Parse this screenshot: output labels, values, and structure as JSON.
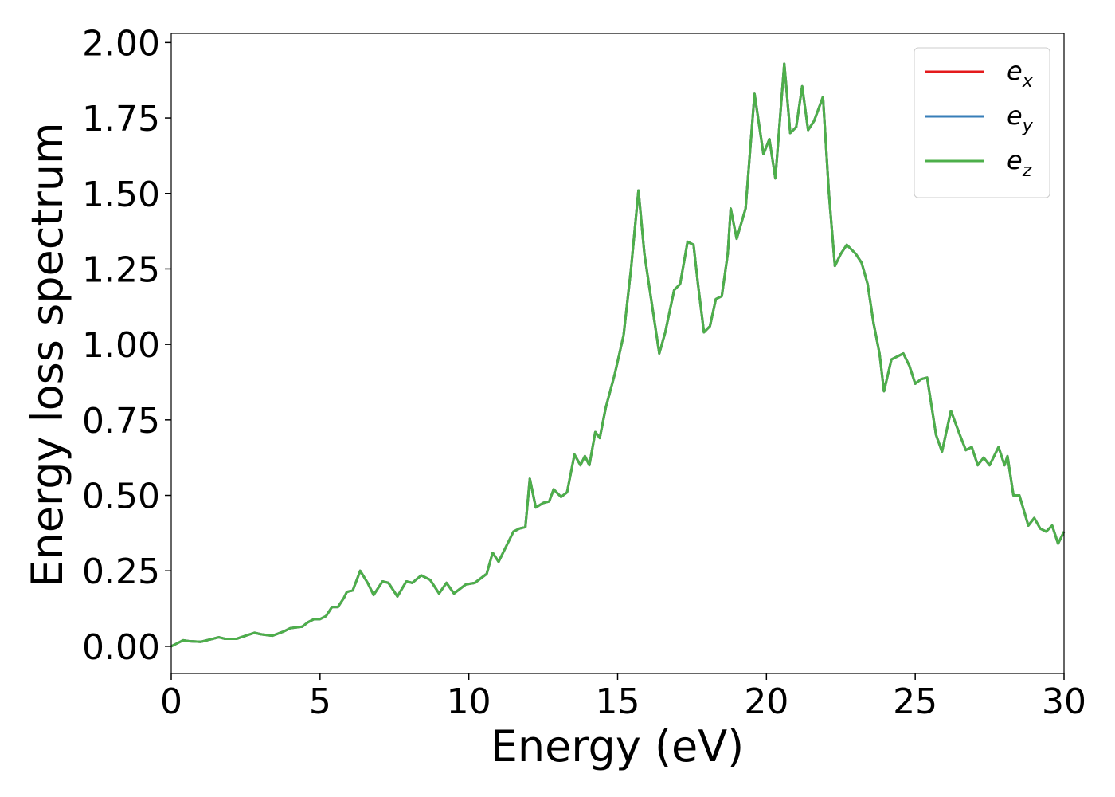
{
  "chart_data": {
    "type": "line",
    "xlabel": "Energy (eV)",
    "ylabel": "Energy loss spectrum",
    "x": [
      0,
      0.4,
      0.6,
      1.0,
      1.4,
      1.6,
      1.8,
      2.2,
      2.8,
      3.0,
      3.4,
      3.8,
      4.0,
      4.4,
      4.6,
      4.8,
      5.0,
      5.2,
      5.4,
      5.6,
      5.8,
      5.9,
      6.1,
      6.35,
      6.6,
      6.8,
      7.1,
      7.3,
      7.6,
      7.9,
      8.1,
      8.4,
      8.7,
      9.0,
      9.25,
      9.5,
      9.9,
      10.2,
      10.6,
      10.8,
      11.0,
      11.3,
      11.5,
      11.7,
      11.9,
      12.05,
      12.25,
      12.5,
      12.7,
      12.85,
      13.1,
      13.3,
      13.55,
      13.75,
      13.9,
      14.05,
      14.25,
      14.4,
      14.6,
      14.9,
      15.2,
      15.45,
      15.7,
      15.9,
      16.05,
      16.4,
      16.6,
      16.9,
      17.1,
      17.35,
      17.55,
      17.7,
      17.9,
      18.1,
      18.3,
      18.5,
      18.7,
      18.8,
      19.0,
      19.3,
      19.6,
      19.9,
      20.1,
      20.3,
      20.6,
      20.8,
      21.0,
      21.2,
      21.4,
      21.6,
      21.9,
      22.1,
      22.3,
      22.5,
      22.7,
      23.0,
      23.2,
      23.4,
      23.6,
      23.8,
      23.95,
      24.2,
      24.6,
      24.8,
      25.0,
      25.2,
      25.4,
      25.7,
      25.9,
      26.2,
      26.5,
      26.7,
      26.9,
      27.1,
      27.3,
      27.5,
      27.8,
      28.0,
      28.1,
      28.3,
      28.5,
      28.8,
      29.0,
      29.2,
      29.4,
      29.6,
      29.8,
      30.0
    ],
    "series": [
      {
        "name": "e_x",
        "color": "#e41a1c",
        "values": [
          0,
          0.02,
          0.017,
          0.015,
          0.025,
          0.03,
          0.025,
          0.025,
          0.045,
          0.04,
          0.035,
          0.05,
          0.06,
          0.065,
          0.08,
          0.09,
          0.09,
          0.1,
          0.13,
          0.13,
          0.16,
          0.18,
          0.185,
          0.25,
          0.21,
          0.17,
          0.215,
          0.21,
          0.165,
          0.215,
          0.21,
          0.235,
          0.22,
          0.175,
          0.21,
          0.175,
          0.205,
          0.21,
          0.24,
          0.31,
          0.28,
          0.34,
          0.38,
          0.39,
          0.395,
          0.555,
          0.46,
          0.475,
          0.48,
          0.52,
          0.495,
          0.51,
          0.635,
          0.6,
          0.63,
          0.6,
          0.71,
          0.69,
          0.79,
          0.9,
          1.03,
          1.25,
          1.51,
          1.3,
          1.2,
          0.97,
          1.04,
          1.18,
          1.2,
          1.34,
          1.33,
          1.2,
          1.04,
          1.06,
          1.15,
          1.16,
          1.3,
          1.45,
          1.35,
          1.45,
          1.83,
          1.63,
          1.68,
          1.55,
          1.93,
          1.7,
          1.72,
          1.855,
          1.71,
          1.74,
          1.82,
          1.5,
          1.26,
          1.3,
          1.33,
          1.3,
          1.27,
          1.2,
          1.07,
          0.97,
          0.845,
          0.95,
          0.97,
          0.93,
          0.87,
          0.885,
          0.89,
          0.7,
          0.645,
          0.78,
          0.7,
          0.65,
          0.66,
          0.6,
          0.625,
          0.6,
          0.66,
          0.6,
          0.63,
          0.5,
          0.5,
          0.4,
          0.425,
          0.39,
          0.38,
          0.4,
          0.34,
          0.38
        ]
      },
      {
        "name": "e_y",
        "color": "#377eb8",
        "values": [
          0,
          0.02,
          0.017,
          0.015,
          0.025,
          0.03,
          0.025,
          0.025,
          0.045,
          0.04,
          0.035,
          0.05,
          0.06,
          0.065,
          0.08,
          0.09,
          0.09,
          0.1,
          0.13,
          0.13,
          0.16,
          0.18,
          0.185,
          0.25,
          0.21,
          0.17,
          0.215,
          0.21,
          0.165,
          0.215,
          0.21,
          0.235,
          0.22,
          0.175,
          0.21,
          0.175,
          0.205,
          0.21,
          0.24,
          0.31,
          0.28,
          0.34,
          0.38,
          0.39,
          0.395,
          0.555,
          0.46,
          0.475,
          0.48,
          0.52,
          0.495,
          0.51,
          0.635,
          0.6,
          0.63,
          0.6,
          0.71,
          0.69,
          0.79,
          0.9,
          1.03,
          1.25,
          1.51,
          1.3,
          1.2,
          0.97,
          1.04,
          1.18,
          1.2,
          1.34,
          1.33,
          1.2,
          1.04,
          1.06,
          1.15,
          1.16,
          1.3,
          1.45,
          1.35,
          1.45,
          1.83,
          1.63,
          1.68,
          1.55,
          1.93,
          1.7,
          1.72,
          1.855,
          1.71,
          1.74,
          1.82,
          1.5,
          1.26,
          1.3,
          1.33,
          1.3,
          1.27,
          1.2,
          1.07,
          0.97,
          0.845,
          0.95,
          0.97,
          0.93,
          0.87,
          0.885,
          0.89,
          0.7,
          0.645,
          0.78,
          0.7,
          0.65,
          0.66,
          0.6,
          0.625,
          0.6,
          0.66,
          0.6,
          0.63,
          0.5,
          0.5,
          0.4,
          0.425,
          0.39,
          0.38,
          0.4,
          0.34,
          0.38
        ]
      },
      {
        "name": "e_z",
        "color": "#4daf4a",
        "values": [
          0,
          0.02,
          0.017,
          0.015,
          0.025,
          0.03,
          0.025,
          0.025,
          0.045,
          0.04,
          0.035,
          0.05,
          0.06,
          0.065,
          0.08,
          0.09,
          0.09,
          0.1,
          0.13,
          0.13,
          0.16,
          0.18,
          0.185,
          0.25,
          0.21,
          0.17,
          0.215,
          0.21,
          0.165,
          0.215,
          0.21,
          0.235,
          0.22,
          0.175,
          0.21,
          0.175,
          0.205,
          0.21,
          0.24,
          0.31,
          0.28,
          0.34,
          0.38,
          0.39,
          0.395,
          0.555,
          0.46,
          0.475,
          0.48,
          0.52,
          0.495,
          0.51,
          0.635,
          0.6,
          0.63,
          0.6,
          0.71,
          0.69,
          0.79,
          0.9,
          1.03,
          1.25,
          1.51,
          1.3,
          1.2,
          0.97,
          1.04,
          1.18,
          1.2,
          1.34,
          1.33,
          1.2,
          1.04,
          1.06,
          1.15,
          1.16,
          1.3,
          1.45,
          1.35,
          1.45,
          1.83,
          1.63,
          1.68,
          1.55,
          1.93,
          1.7,
          1.72,
          1.855,
          1.71,
          1.74,
          1.82,
          1.5,
          1.26,
          1.3,
          1.33,
          1.3,
          1.27,
          1.2,
          1.07,
          0.97,
          0.845,
          0.95,
          0.97,
          0.93,
          0.87,
          0.885,
          0.89,
          0.7,
          0.645,
          0.78,
          0.7,
          0.65,
          0.66,
          0.6,
          0.625,
          0.6,
          0.66,
          0.6,
          0.63,
          0.5,
          0.5,
          0.4,
          0.425,
          0.39,
          0.38,
          0.4,
          0.34,
          0.38
        ]
      }
    ],
    "xlim": [
      0,
      30
    ],
    "xticks": [
      0,
      5,
      10,
      15,
      20,
      25,
      30
    ],
    "ylim": [
      -0.09,
      2.03
    ],
    "yticks": [
      {
        "value": 0,
        "label": "0.00"
      },
      {
        "value": 0.25,
        "label": "0.25"
      },
      {
        "value": 0.5,
        "label": "0.50"
      },
      {
        "value": 0.75,
        "label": "0.75"
      },
      {
        "value": 1,
        "label": "1.00"
      },
      {
        "value": 1.25,
        "label": "1.25"
      },
      {
        "value": 1.5,
        "label": "1.50"
      },
      {
        "value": 1.75,
        "label": "1.75"
      },
      {
        "value": 2,
        "label": "2.00"
      }
    ],
    "grid": false,
    "legend": "upper right"
  }
}
